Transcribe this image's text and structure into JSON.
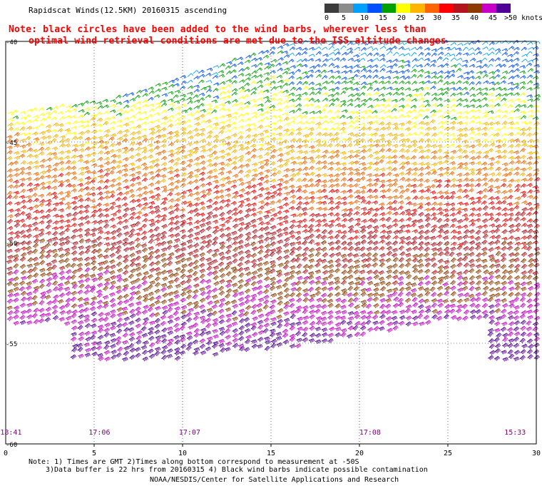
{
  "header": {
    "title": "Rapidscat Winds(12.5KM) 20160315 ascending",
    "note_line1": "Note: black circles have been added to the wind barbs, wherever less than",
    "note_line2": "optimal wind retrieval conditions are met due to the ISS altitude changes"
  },
  "colorbar": {
    "labels": [
      "0",
      "5",
      "10",
      "15",
      "20",
      "25",
      "30",
      "35",
      "40",
      "45",
      ">50 knots"
    ],
    "colors": [
      "#3c3c3c",
      "#8c8c8c",
      "#00a0ff",
      "#0050ff",
      "#00a000",
      "#ffff00",
      "#ffb400",
      "#ff6400",
      "#ff0000",
      "#b4141e",
      "#8c3c00",
      "#c800c8",
      "#500096"
    ]
  },
  "axes": {
    "y_ticks": [
      "-40",
      "-45",
      "-50",
      "-55",
      "-60"
    ],
    "x_ticks": [
      "0",
      "5",
      "10",
      "15",
      "20",
      "25",
      "30"
    ],
    "times": [
      "18:41",
      "17:06",
      "17:07",
      "17:08",
      "15:33"
    ]
  },
  "footer": {
    "line1": "Note: 1) Times are GMT 2)Times along bottom correspond to measurement at -50S",
    "line2": "3)Data buffer is 22 hrs from 20160315 4) Black wind barbs indicate possible contamination",
    "line3": "NOAA/NESDIS/Center for Satellite Applications and Research"
  },
  "colors": {
    "time_labels": "#800080",
    "note": "#ff0000",
    "grid": "#000000"
  }
}
